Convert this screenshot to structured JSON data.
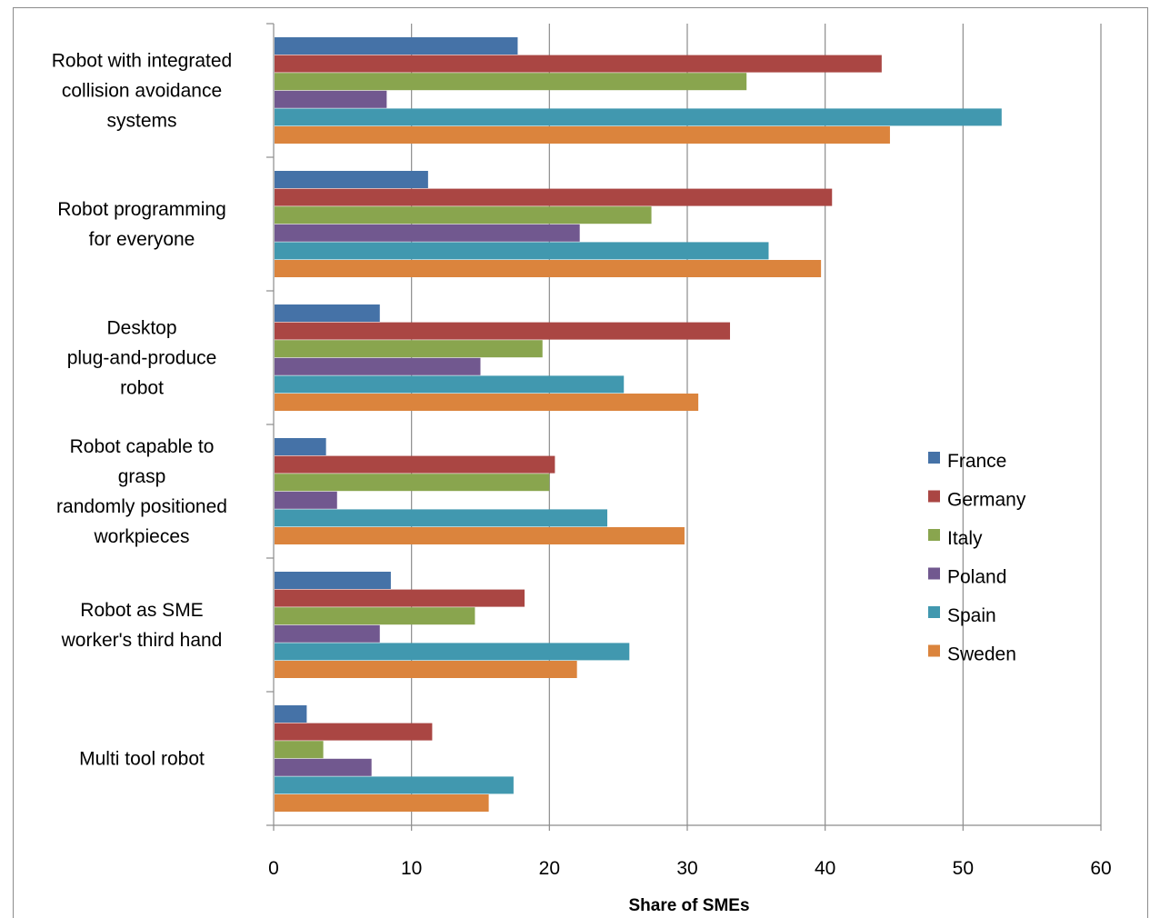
{
  "chart_data": {
    "type": "bar",
    "orientation": "horizontal",
    "categories": [
      [
        "Robot with integrated",
        "collision avoidance",
        "systems"
      ],
      [
        "Robot programming",
        "for everyone"
      ],
      [
        "Desktop",
        "plug-and-produce",
        "robot"
      ],
      [
        "Robot capable to",
        "grasp",
        "randomly positioned",
        "workpieces"
      ],
      [
        "Robot as SME",
        "worker's third hand"
      ],
      [
        "Multi tool robot"
      ]
    ],
    "series": [
      {
        "name": "France",
        "color": "#4572A7",
        "values": [
          17.7,
          11.2,
          7.7,
          3.8,
          8.5,
          2.4
        ]
      },
      {
        "name": "Germany",
        "color": "#AA4643",
        "values": [
          44.1,
          40.5,
          33.1,
          20.4,
          18.2,
          11.5
        ]
      },
      {
        "name": "Italy",
        "color": "#89A54E",
        "values": [
          34.3,
          27.4,
          19.5,
          20.0,
          14.6,
          3.6
        ]
      },
      {
        "name": "Poland",
        "color": "#71588F",
        "values": [
          8.2,
          22.2,
          15.0,
          4.6,
          7.7,
          7.1
        ]
      },
      {
        "name": "Spain",
        "color": "#4198AF",
        "values": [
          52.8,
          35.9,
          25.4,
          24.2,
          25.8,
          17.4
        ]
      },
      {
        "name": "Sweden",
        "color": "#DB843D",
        "values": [
          44.7,
          39.7,
          30.8,
          29.8,
          22.0,
          15.6
        ]
      }
    ],
    "xlim": [
      0,
      60
    ],
    "xticks": [
      0,
      10,
      20,
      30,
      40,
      50,
      60
    ],
    "xlabel": "Share of SMEs",
    "grid": "vertical",
    "legend_position": "right"
  }
}
